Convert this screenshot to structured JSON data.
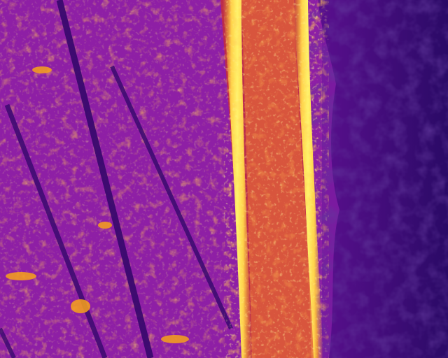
{
  "image": {
    "kind": "thermal aerial photograph",
    "palette": "inferno",
    "colors": {
      "cold": "#1e0a55",
      "cool": "#4b0f8c",
      "mid": "#8a1fa6",
      "warm": "#d8403a",
      "hot": "#f7a21a",
      "hottest": "#fff26a"
    }
  }
}
